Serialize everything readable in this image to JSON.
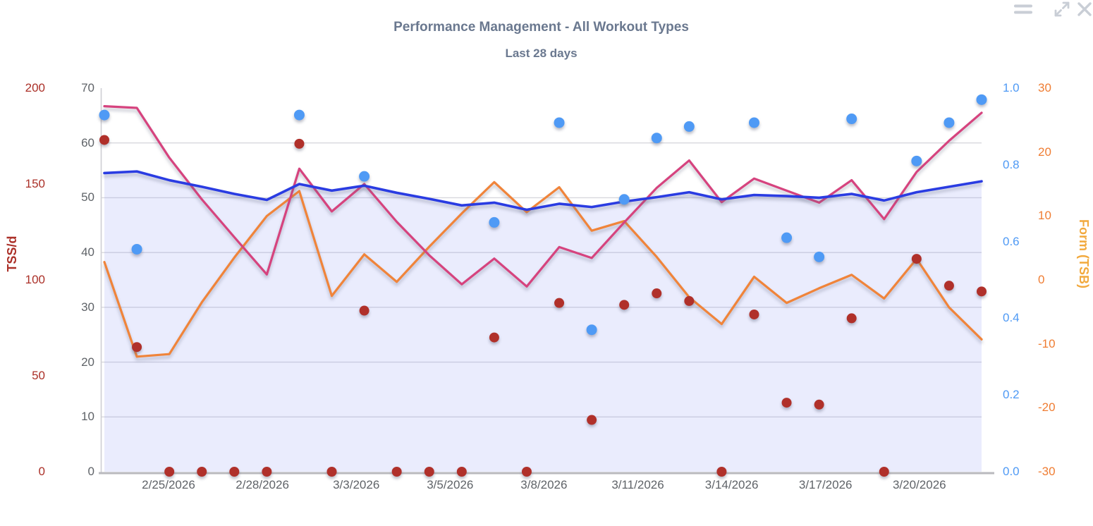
{
  "header": {
    "title": "Performance Management - All Workout Types",
    "subtitle": "Last 28 days",
    "color": "#6a788f"
  },
  "window_controls": {
    "menu_icon": "menu",
    "expand_icon": "expand",
    "close_icon": "close",
    "color": "#c9ced6"
  },
  "axes": {
    "tss_daily": {
      "title": "TSS/d",
      "side": "far-left",
      "color": "#ab3028",
      "ticks": [
        "0",
        "50",
        "100",
        "150",
        "200"
      ],
      "range": [
        0,
        200
      ]
    },
    "load": {
      "side": "left",
      "color": "#5f6368",
      "ticks": [
        "0",
        "10",
        "20",
        "30",
        "40",
        "50",
        "60",
        "70"
      ],
      "range": [
        0,
        70
      ]
    },
    "intensity": {
      "side": "right",
      "color": "#4f9af5",
      "ticks": [
        "0.0",
        "0.2",
        "0.4",
        "0.6",
        "0.8",
        "1.0"
      ],
      "range": [
        0,
        1
      ]
    },
    "form": {
      "title": "Form (TSB)",
      "side": "far-right",
      "tick_color": "#ef7d33",
      "title_color": "#f2a93d",
      "ticks": [
        "-30",
        "-20",
        "-10",
        "0",
        "10",
        "20",
        "30"
      ],
      "range": [
        -30,
        30
      ]
    }
  },
  "chart_data": {
    "type": "line",
    "title": "Performance Management - All Workout Types",
    "subtitle": "Last 28 days",
    "grid": "horizontal",
    "legend": "none",
    "x": [
      "2/23/2026",
      "2/24/2026",
      "2/25/2026",
      "2/26/2026",
      "2/27/2026",
      "2/28/2026",
      "3/1/2026",
      "3/2/2026",
      "3/3/2026",
      "3/4/2026",
      "3/5/2026",
      "3/6/2026",
      "3/7/2026",
      "3/8/2026",
      "3/9/2026",
      "3/10/2026",
      "3/11/2026",
      "3/12/2026",
      "3/13/2026",
      "3/14/2026",
      "3/15/2026",
      "3/16/2026",
      "3/17/2026",
      "3/18/2026",
      "3/19/2026",
      "3/20/2026",
      "3/21/2026",
      "3/22/2026"
    ],
    "x_tick_labels": [
      "2/25/2026",
      "2/28/2026",
      "3/3/2026",
      "3/5/2026",
      "3/8/2026",
      "3/11/2026",
      "3/14/2026",
      "3/17/2026",
      "3/20/2026"
    ],
    "axis_ranges": {
      "tss_daily": [
        0,
        200
      ],
      "load": [
        0,
        70
      ],
      "intensity": [
        0,
        1
      ],
      "form": [
        -30,
        30
      ]
    },
    "series": [
      {
        "name": "fitness-area-line",
        "type": "area-line",
        "axis": "load",
        "color": "#2a3ce2",
        "fill": "rgba(124,138,244,0.16)",
        "values": [
          54.5,
          54.8,
          53.2,
          52.0,
          50.7,
          49.6,
          52.5,
          51.3,
          52.2,
          50.9,
          49.8,
          48.6,
          49.1,
          47.8,
          48.9,
          48.3,
          49.3,
          50.1,
          51.0,
          49.7,
          50.5,
          50.3,
          50.0,
          50.7,
          49.5,
          51.0,
          52.0,
          53.0
        ]
      },
      {
        "name": "fatigue-line",
        "type": "line",
        "axis": "load",
        "color": "#d6437e",
        "values": [
          66.7,
          66.4,
          57.3,
          49.7,
          42.8,
          36.0,
          55.3,
          47.5,
          52.5,
          45.6,
          39.5,
          34.2,
          38.9,
          33.8,
          41.0,
          39.0,
          45.5,
          51.8,
          56.8,
          49.2,
          53.5,
          51.3,
          49.1,
          53.2,
          46.1,
          54.7,
          60.4,
          65.5
        ]
      },
      {
        "name": "form-tsb-line",
        "type": "line",
        "axis": "form",
        "color": "#f0843a",
        "values": [
          2.8,
          -12.0,
          -11.6,
          -3.5,
          3.5,
          10.0,
          13.9,
          -2.5,
          4.0,
          -0.3,
          5.2,
          10.4,
          15.3,
          10.6,
          14.5,
          7.7,
          9.2,
          3.6,
          -2.7,
          -6.9,
          0.5,
          -3.6,
          -1.3,
          0.8,
          -2.9,
          3.3,
          -4.3,
          -9.3
        ]
      },
      {
        "name": "daily-tss-dots",
        "type": "scatter",
        "axis": "tss_daily",
        "color": "#b0302a",
        "radius": 7,
        "values": [
          173,
          65,
          0,
          0,
          0,
          0,
          171,
          0,
          84,
          0,
          0,
          0,
          70,
          0,
          88,
          27,
          87,
          93,
          89,
          0,
          82,
          36,
          35,
          80,
          0,
          111,
          97,
          94
        ]
      },
      {
        "name": "intensity-dots",
        "type": "scatter",
        "axis": "intensity",
        "color": "#4f9af5",
        "radius": 7.5,
        "values": [
          0.93,
          0.58,
          null,
          null,
          null,
          null,
          0.93,
          null,
          0.77,
          null,
          null,
          null,
          0.65,
          null,
          0.91,
          0.37,
          0.71,
          0.87,
          0.9,
          null,
          0.91,
          0.61,
          0.56,
          0.92,
          null,
          0.81,
          0.91,
          0.97
        ]
      }
    ]
  }
}
